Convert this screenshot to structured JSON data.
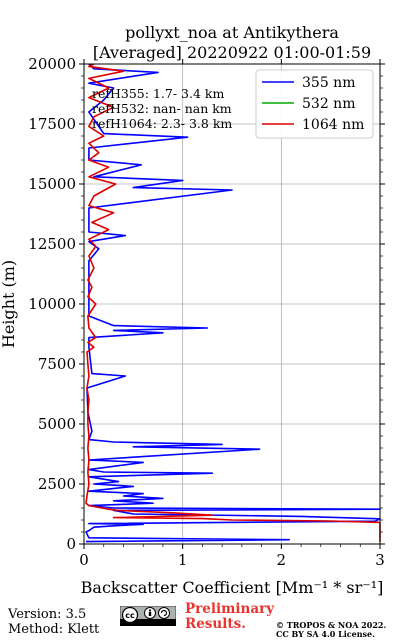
{
  "chart_data": {
    "type": "line",
    "title_line1": "pollyxt_noa at Antikythera",
    "title_line2": "[Averaged] 20220922 01:00-01:59",
    "xlabel": "Backscatter Coefficient [Mm⁻¹ * sr⁻¹]",
    "ylabel": "Height (m)",
    "xlim": [
      0,
      3
    ],
    "ylim": [
      0,
      20000
    ],
    "x_ticks": [
      0,
      1,
      2,
      3
    ],
    "y_ticks": [
      0,
      2500,
      5000,
      7500,
      10000,
      12500,
      15000,
      17500,
      20000
    ],
    "grid": true,
    "legend_position": "top-right",
    "annotations": [
      "refH355:  1.7- 3.4 km",
      "refH532:  nan- nan km",
      "refH1064:  2.3- 3.8 km"
    ],
    "series": [
      {
        "name": "355 nm",
        "color": "#0000ff",
        "points": [
          [
            0.02,
            100
          ],
          [
            2.08,
            180
          ],
          [
            0.05,
            260
          ],
          [
            0.02,
            500
          ],
          [
            0.05,
            560
          ],
          [
            0.1,
            700
          ],
          [
            0.3,
            760
          ],
          [
            0.6,
            820
          ],
          [
            0.05,
            850
          ],
          [
            2.95,
            950
          ],
          [
            3.0,
            1050
          ],
          [
            2.2,
            1150
          ],
          [
            0.5,
            1250
          ],
          [
            0.3,
            1400
          ],
          [
            3.0,
            1450
          ],
          [
            0.3,
            1500
          ],
          [
            0.05,
            1600
          ],
          [
            0.7,
            1700
          ],
          [
            0.3,
            1800
          ],
          [
            0.8,
            1900
          ],
          [
            0.4,
            2000
          ],
          [
            0.6,
            2100
          ],
          [
            0.05,
            2200
          ],
          [
            0.5,
            2400
          ],
          [
            0.1,
            2500
          ],
          [
            0.35,
            2600
          ],
          [
            0.05,
            2800
          ],
          [
            1.3,
            2950
          ],
          [
            0.2,
            3000
          ],
          [
            0.05,
            3100
          ],
          [
            0.6,
            3400
          ],
          [
            0.05,
            3500
          ],
          [
            1.78,
            3950
          ],
          [
            0.5,
            4050
          ],
          [
            1.4,
            4150
          ],
          [
            0.3,
            4250
          ],
          [
            0.05,
            4350
          ],
          [
            0.08,
            4700
          ],
          [
            0.04,
            5500
          ],
          [
            0.03,
            6500
          ],
          [
            0.42,
            7000
          ],
          [
            0.08,
            7100
          ],
          [
            0.05,
            8200
          ],
          [
            0.05,
            8600
          ],
          [
            0.8,
            8800
          ],
          [
            0.3,
            8900
          ],
          [
            1.25,
            9000
          ],
          [
            0.3,
            9100
          ],
          [
            0.05,
            9500
          ],
          [
            0.05,
            10500
          ],
          [
            0.05,
            11800
          ],
          [
            0.15,
            12300
          ],
          [
            0.05,
            12600
          ],
          [
            0.42,
            12850
          ],
          [
            0.05,
            13000
          ],
          [
            0.05,
            14000
          ],
          [
            1.5,
            14750
          ],
          [
            0.5,
            14850
          ],
          [
            1.0,
            15150
          ],
          [
            0.1,
            15300
          ],
          [
            0.58,
            15800
          ],
          [
            0.05,
            16000
          ],
          [
            0.05,
            16500
          ],
          [
            1.05,
            16950
          ],
          [
            0.2,
            17100
          ],
          [
            0.05,
            18000
          ],
          [
            0.2,
            18500
          ],
          [
            0.3,
            19000
          ],
          [
            0.05,
            19200
          ],
          [
            0.75,
            19650
          ],
          [
            0.1,
            19800
          ],
          [
            0.05,
            20000
          ]
        ]
      },
      {
        "name": "532 nm",
        "color": "#00aa00",
        "points": []
      },
      {
        "name": "1064 nm",
        "color": "#dd0000",
        "points": [
          [
            3.0,
            100
          ],
          [
            3.0,
            900
          ],
          [
            2.5,
            960
          ],
          [
            1.5,
            1000
          ],
          [
            1.2,
            1060
          ],
          [
            0.3,
            1100
          ],
          [
            1.3,
            1200
          ],
          [
            0.9,
            1300
          ],
          [
            0.35,
            1400
          ],
          [
            0.25,
            1450
          ],
          [
            0.05,
            1600
          ],
          [
            0.02,
            1700
          ],
          [
            0.03,
            2000
          ],
          [
            0.05,
            2500
          ],
          [
            0.04,
            3000
          ],
          [
            0.05,
            3500
          ],
          [
            0.04,
            4000
          ],
          [
            0.05,
            4500
          ],
          [
            0.04,
            5000
          ],
          [
            0.04,
            5500
          ],
          [
            0.05,
            6000
          ],
          [
            0.03,
            6500
          ],
          [
            0.05,
            7000
          ],
          [
            0.04,
            7500
          ],
          [
            0.03,
            8000
          ],
          [
            0.1,
            8200
          ],
          [
            0.04,
            8400
          ],
          [
            0.12,
            8600
          ],
          [
            0.05,
            9000
          ],
          [
            0.04,
            9500
          ],
          [
            0.12,
            10000
          ],
          [
            0.04,
            10300
          ],
          [
            0.08,
            10700
          ],
          [
            0.04,
            11000
          ],
          [
            0.1,
            11500
          ],
          [
            0.05,
            12000
          ],
          [
            0.12,
            12400
          ],
          [
            0.05,
            12700
          ],
          [
            0.25,
            13100
          ],
          [
            0.08,
            13400
          ],
          [
            0.3,
            13800
          ],
          [
            0.05,
            14100
          ],
          [
            0.1,
            14500
          ],
          [
            0.32,
            15000
          ],
          [
            0.05,
            15300
          ],
          [
            0.25,
            15700
          ],
          [
            0.05,
            16000
          ],
          [
            0.15,
            16300
          ],
          [
            0.05,
            16700
          ],
          [
            0.2,
            17000
          ],
          [
            0.05,
            17400
          ],
          [
            0.1,
            17800
          ],
          [
            0.3,
            18200
          ],
          [
            0.05,
            18600
          ],
          [
            0.25,
            19000
          ],
          [
            0.05,
            19400
          ],
          [
            0.4,
            19700
          ],
          [
            0.05,
            19900
          ],
          [
            0.1,
            20000
          ]
        ]
      }
    ]
  },
  "footer": {
    "version": "Version: 3.5",
    "method": "Method: Klett",
    "preliminary": "Preliminary\nResults.",
    "copyright_line1": "© TROPOS & NOA 2022.",
    "copyright_line2": "CC BY SA 4.0 License."
  },
  "license_badge": "cc-by-sa-icon"
}
